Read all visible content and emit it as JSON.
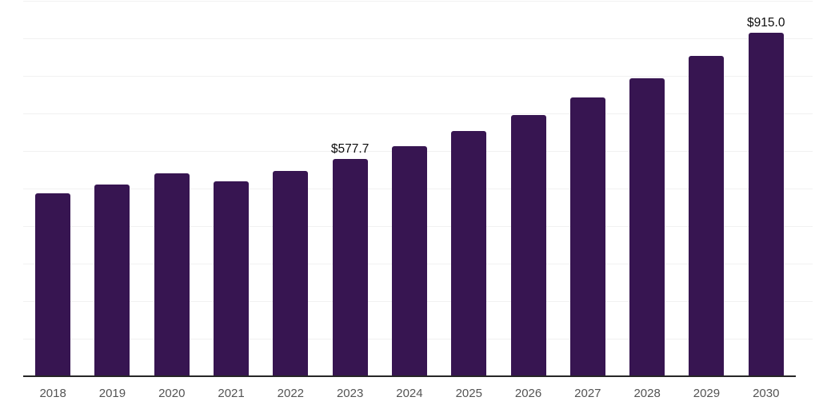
{
  "chart_data": {
    "type": "bar",
    "title": "",
    "xlabel": "",
    "ylabel": "",
    "categories": [
      "2018",
      "2019",
      "2020",
      "2021",
      "2022",
      "2023",
      "2024",
      "2025",
      "2026",
      "2027",
      "2028",
      "2029",
      "2030"
    ],
    "values": [
      487.0,
      509.5,
      539.5,
      518.0,
      546.5,
      577.7,
      612.5,
      652.0,
      694.0,
      741.0,
      792.5,
      852.0,
      915.0
    ],
    "data_labels": {
      "2023": "$577.7",
      "2030": "$915.0"
    },
    "value_prefix": "$",
    "ylim": [
      0,
      1000
    ],
    "gridline_step": 100,
    "grid": true,
    "y_tick_labels_visible": false,
    "legend_position": "none"
  },
  "style": {
    "bar_color": "#371551",
    "gridline_color": "#f1f1f1",
    "axis_line_color": "#262626",
    "tick_label_color": "#545454",
    "data_label_color": "#0d0d0d",
    "background_color": "#ffffff"
  }
}
